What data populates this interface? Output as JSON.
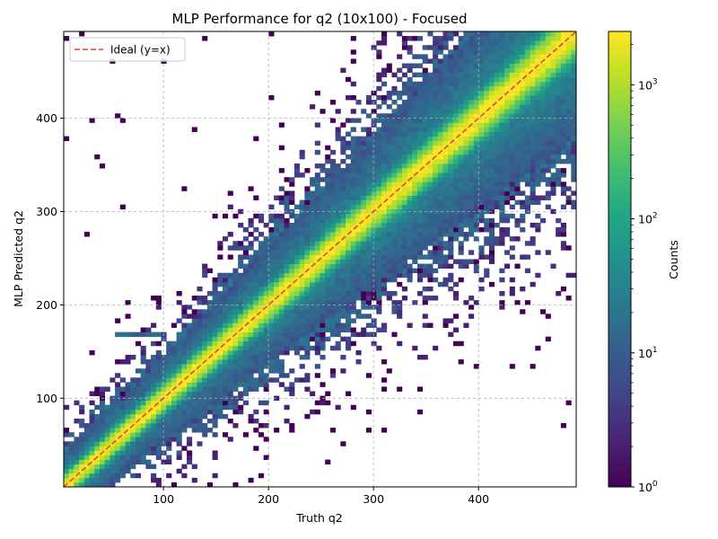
{
  "chart_data": {
    "type": "heatmap",
    "title": "MLP Performance for q2 (10x100) - Focused",
    "xlabel": "Truth q2",
    "ylabel": "MLP Predicted q2",
    "xlim": [
      5,
      493
    ],
    "ylim": [
      5,
      493
    ],
    "xticks": [
      100,
      200,
      300,
      400
    ],
    "yticks": [
      100,
      200,
      300,
      400
    ],
    "grid": true,
    "bins": 100,
    "legend": {
      "placement": "top-left",
      "entries": [
        {
          "label": "Ideal (y=x)",
          "style": "dashed",
          "color": "#e8413a"
        }
      ]
    },
    "ideal_line": {
      "x": [
        5,
        493
      ],
      "y": [
        5,
        493
      ]
    },
    "colorbar": {
      "label": "Counts",
      "scale": "log",
      "range": [
        1,
        2500
      ],
      "ticks": [
        {
          "value": 1,
          "base": "10",
          "exp": "0"
        },
        {
          "value": 10,
          "base": "10",
          "exp": "1"
        },
        {
          "value": 100,
          "base": "10",
          "exp": "2"
        },
        {
          "value": 1000,
          "base": "10",
          "exp": "3"
        }
      ],
      "colormap": "viridis"
    },
    "features": {
      "diagonal_peak_counts": 2500,
      "diagonal_core_width": 5,
      "spread_growth_per_unit": 0.085,
      "artifact_band": {
        "y": 167,
        "x_range": [
          52,
          100
        ]
      },
      "low_region_spread": {
        "x_range": [
          5,
          60
        ],
        "y_range": [
          5,
          100
        ]
      }
    }
  }
}
